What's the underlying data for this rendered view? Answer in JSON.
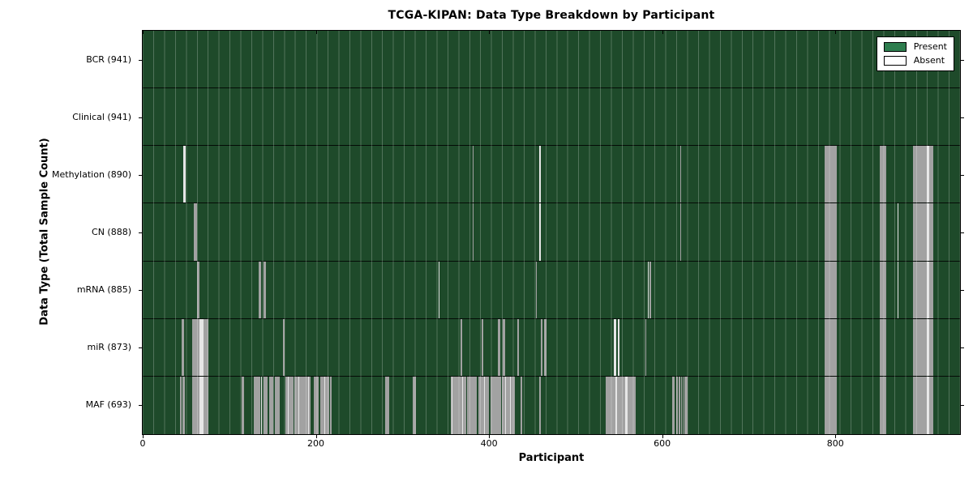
{
  "colors": {
    "present": "#2e7d4e",
    "field": "#1e4a2a",
    "absent_gray": "#a2a2a2",
    "absent_white": "#e6e6e6"
  },
  "legend": {
    "present": "Present",
    "absent": "Absent"
  },
  "chart_data": {
    "type": "heatmap",
    "title": "TCGA-KIPAN: Data Type Breakdown by Participant",
    "xlabel": "Participant",
    "ylabel": "Data Type (Total Sample Count)",
    "x_axis": {
      "ticks": [
        0,
        200,
        400,
        600,
        800
      ],
      "max": 944
    },
    "legend_entries": [
      "Present",
      "Absent"
    ],
    "legend_position": "upper right",
    "grid": false,
    "cell_states": {
      "present": "green",
      "absent": "white"
    },
    "rows": [
      {
        "label": "BCR",
        "count": 941,
        "tick_label": "BCR (941)",
        "absent": []
      },
      {
        "label": "Clinical",
        "count": 941,
        "tick_label": "Clinical (941)",
        "absent": []
      },
      {
        "label": "Methylation",
        "count": 890,
        "tick_label": "Methylation (890)",
        "absent": [
          [
            47,
            50,
            "w"
          ],
          [
            381,
            382,
            "g"
          ],
          [
            458,
            460,
            "w"
          ],
          [
            621,
            622,
            "g"
          ],
          [
            788,
            802,
            "g"
          ],
          [
            851,
            859,
            "g"
          ],
          [
            890,
            906,
            "g"
          ],
          [
            906,
            908,
            "w"
          ],
          [
            908,
            913,
            "g"
          ]
        ]
      },
      {
        "label": "CN",
        "count": 888,
        "tick_label": "CN (888)",
        "absent": [
          [
            59,
            63,
            "g"
          ],
          [
            381,
            382,
            "g"
          ],
          [
            458,
            460,
            "w"
          ],
          [
            621,
            622,
            "g"
          ],
          [
            788,
            802,
            "g"
          ],
          [
            851,
            859,
            "g"
          ],
          [
            872,
            873,
            "w"
          ],
          [
            890,
            906,
            "g"
          ],
          [
            906,
            908,
            "w"
          ],
          [
            908,
            913,
            "g"
          ]
        ]
      },
      {
        "label": "mRNA",
        "count": 885,
        "tick_label": "mRNA (885)",
        "absent": [
          [
            63,
            66,
            "g"
          ],
          [
            134,
            137,
            "g"
          ],
          [
            140,
            142,
            "g"
          ],
          [
            342,
            343,
            "w"
          ],
          [
            454,
            455,
            "g"
          ],
          [
            583,
            584,
            "w"
          ],
          [
            585,
            587,
            "g"
          ],
          [
            788,
            802,
            "g"
          ],
          [
            851,
            859,
            "g"
          ],
          [
            872,
            873,
            "w"
          ],
          [
            890,
            906,
            "g"
          ],
          [
            906,
            908,
            "w"
          ],
          [
            908,
            913,
            "g"
          ]
        ]
      },
      {
        "label": "miR",
        "count": 873,
        "tick_label": "miR (873)",
        "absent": [
          [
            45,
            48,
            "g"
          ],
          [
            57,
            76,
            "g"
          ],
          [
            66,
            70,
            "w"
          ],
          [
            162,
            164,
            "g"
          ],
          [
            367,
            369,
            "g"
          ],
          [
            391,
            393,
            "g"
          ],
          [
            410,
            413,
            "g"
          ],
          [
            416,
            419,
            "g"
          ],
          [
            433,
            435,
            "g"
          ],
          [
            460,
            462,
            "g"
          ],
          [
            464,
            466,
            "g"
          ],
          [
            544,
            547,
            "w"
          ],
          [
            549,
            551,
            "w"
          ],
          [
            581,
            582,
            "g"
          ],
          [
            788,
            802,
            "g"
          ],
          [
            851,
            859,
            "g"
          ],
          [
            890,
            906,
            "g"
          ],
          [
            906,
            908,
            "w"
          ],
          [
            908,
            913,
            "g"
          ]
        ]
      },
      {
        "label": "MAF",
        "count": 693,
        "tick_label": "MAF (693)",
        "absent": [
          [
            43,
            45,
            "g"
          ],
          [
            46,
            49,
            "g"
          ],
          [
            57,
            76,
            "g"
          ],
          [
            66,
            70,
            "w"
          ],
          [
            114,
            117,
            "g"
          ],
          [
            128,
            136,
            "g"
          ],
          [
            137,
            138,
            "w"
          ],
          [
            140,
            144,
            "g"
          ],
          [
            146,
            151,
            "g"
          ],
          [
            153,
            158,
            "g"
          ],
          [
            165,
            174,
            "g"
          ],
          [
            168,
            169,
            "w"
          ],
          [
            175,
            194,
            "g"
          ],
          [
            180,
            181,
            "w"
          ],
          [
            191,
            192,
            "w"
          ],
          [
            198,
            203,
            "g"
          ],
          [
            205,
            215,
            "g"
          ],
          [
            210,
            211,
            "w"
          ],
          [
            216,
            218,
            "g"
          ],
          [
            280,
            285,
            "g"
          ],
          [
            312,
            316,
            "g"
          ],
          [
            356,
            374,
            "g"
          ],
          [
            357,
            358,
            "w"
          ],
          [
            369,
            370,
            "w"
          ],
          [
            375,
            386,
            "g"
          ],
          [
            388,
            400,
            "g"
          ],
          [
            394,
            395,
            "w"
          ],
          [
            402,
            414,
            "g"
          ],
          [
            415,
            430,
            "g"
          ],
          [
            419,
            420,
            "w"
          ],
          [
            424,
            425,
            "w"
          ],
          [
            436,
            438,
            "g"
          ],
          [
            458,
            460,
            "g"
          ],
          [
            535,
            569,
            "g"
          ],
          [
            546,
            548,
            "w"
          ],
          [
            557,
            560,
            "w"
          ],
          [
            612,
            614,
            "g"
          ],
          [
            616,
            618,
            "g"
          ],
          [
            619,
            621,
            "g"
          ],
          [
            622,
            623,
            "g"
          ],
          [
            624,
            625,
            "g"
          ],
          [
            626,
            629,
            "g"
          ],
          [
            788,
            802,
            "g"
          ],
          [
            851,
            859,
            "g"
          ],
          [
            890,
            906,
            "g"
          ],
          [
            906,
            908,
            "w"
          ],
          [
            908,
            913,
            "g"
          ]
        ]
      }
    ]
  }
}
